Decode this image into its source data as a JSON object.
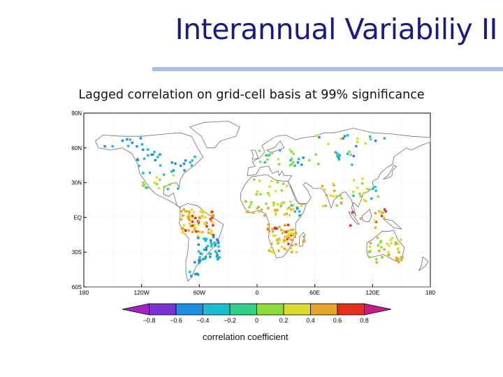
{
  "slide": {
    "title": "Interannual Variabiliy II",
    "subtitle": "Lagged correlation on grid-cell basis at 99% significance"
  },
  "map": {
    "lat_tick_labels": [
      "90N",
      "60N",
      "30N",
      "EQ",
      "30S",
      "60S"
    ],
    "lon_tick_labels": [
      "180",
      "120W",
      "60W",
      "0",
      "60E",
      "120E",
      "180"
    ],
    "colors": {
      "land_outline": "#6e6e6e",
      "frame": "#000000"
    }
  },
  "colorbar": {
    "tick_labels": [
      "−0.8",
      "−0.6",
      "−0.4",
      "−0.2",
      "0",
      "0.2",
      "0.4",
      "0.6",
      "0.8"
    ],
    "colors": [
      "#a223c8",
      "#7a33d3",
      "#1f8ee0",
      "#19bfd0",
      "#2fd08a",
      "#8edc3a",
      "#dcdc2e",
      "#e6a52a",
      "#e23020",
      "#c01f8a"
    ],
    "caption": "correlation coefficient"
  }
}
